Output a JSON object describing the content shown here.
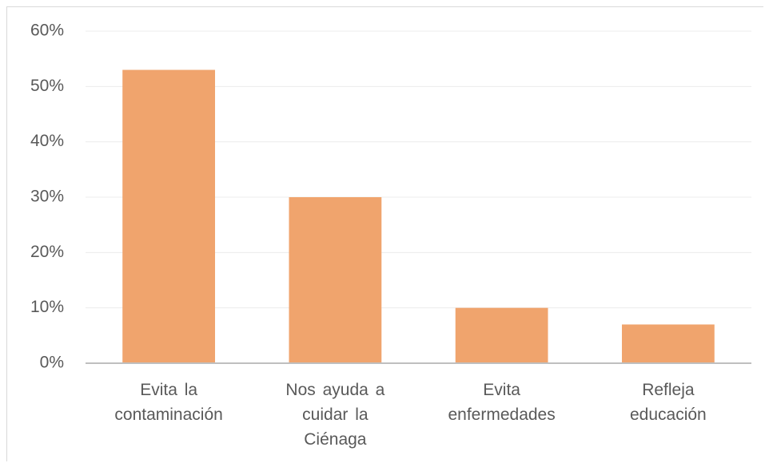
{
  "chart_data": {
    "type": "bar",
    "categories": [
      "Evita la contaminación",
      "Nos ayuda a cuidar la Ciénaga",
      "Evita enfermedades",
      "Refleja educación"
    ],
    "values": [
      53,
      30,
      10,
      7
    ],
    "color": "#f0a46d",
    "ylim": [
      0,
      60
    ],
    "yticks": [
      {
        "value": 0,
        "label": "0%"
      },
      {
        "value": 10,
        "label": "10%"
      },
      {
        "value": 20,
        "label": "20%"
      },
      {
        "value": 30,
        "label": "30%"
      },
      {
        "value": 40,
        "label": "40%"
      },
      {
        "value": 50,
        "label": "50%"
      },
      {
        "value": 60,
        "label": "60%"
      }
    ],
    "grid": true
  }
}
